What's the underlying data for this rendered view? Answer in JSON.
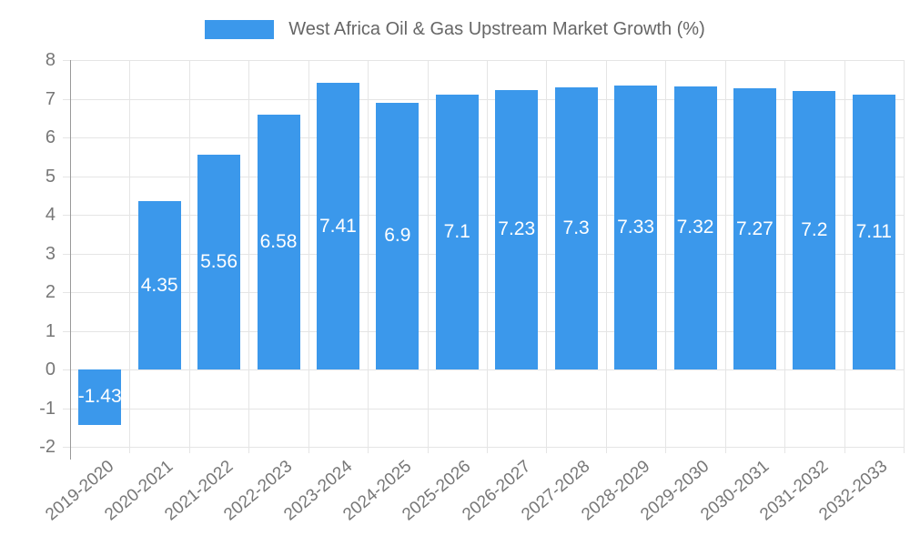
{
  "legend": {
    "swatch_color": "#3b98eb"
  },
  "chart_data": {
    "type": "bar",
    "title": "West Africa Oil & Gas Upstream Market Growth (%)",
    "xlabel": "",
    "ylabel": "",
    "categories": [
      "2019-2020",
      "2020-2021",
      "2021-2022",
      "2022-2023",
      "2023-2024",
      "2024-2025",
      "2025-2026",
      "2026-2027",
      "2027-2028",
      "2028-2029",
      "2029-2030",
      "2030-2031",
      "2031-2032",
      "2032-2033"
    ],
    "values": [
      -1.43,
      4.35,
      5.56,
      6.58,
      7.41,
      6.9,
      7.1,
      7.23,
      7.3,
      7.33,
      7.32,
      7.27,
      7.2,
      7.11
    ],
    "data_labels": [
      "-1.43",
      "4.35",
      "5.56",
      "6.58",
      "7.41",
      "6.9",
      "7.1",
      "7.23",
      "7.3",
      "7.33",
      "7.32",
      "7.27",
      "7.2",
      "7.11"
    ],
    "ylim": [
      -2,
      8
    ],
    "yticks": [
      8,
      7,
      6,
      5,
      4,
      3,
      2,
      1,
      0,
      -1,
      -2
    ],
    "grid": "on",
    "legend_position": "top",
    "colors": {
      "bar": "#3b98eb",
      "data_label": "#ffffff",
      "axis_text": "#777777",
      "legend_text": "#666666",
      "gridline": "#e5e5e5",
      "axis_line": "#999999",
      "background": "#ffffff"
    }
  }
}
